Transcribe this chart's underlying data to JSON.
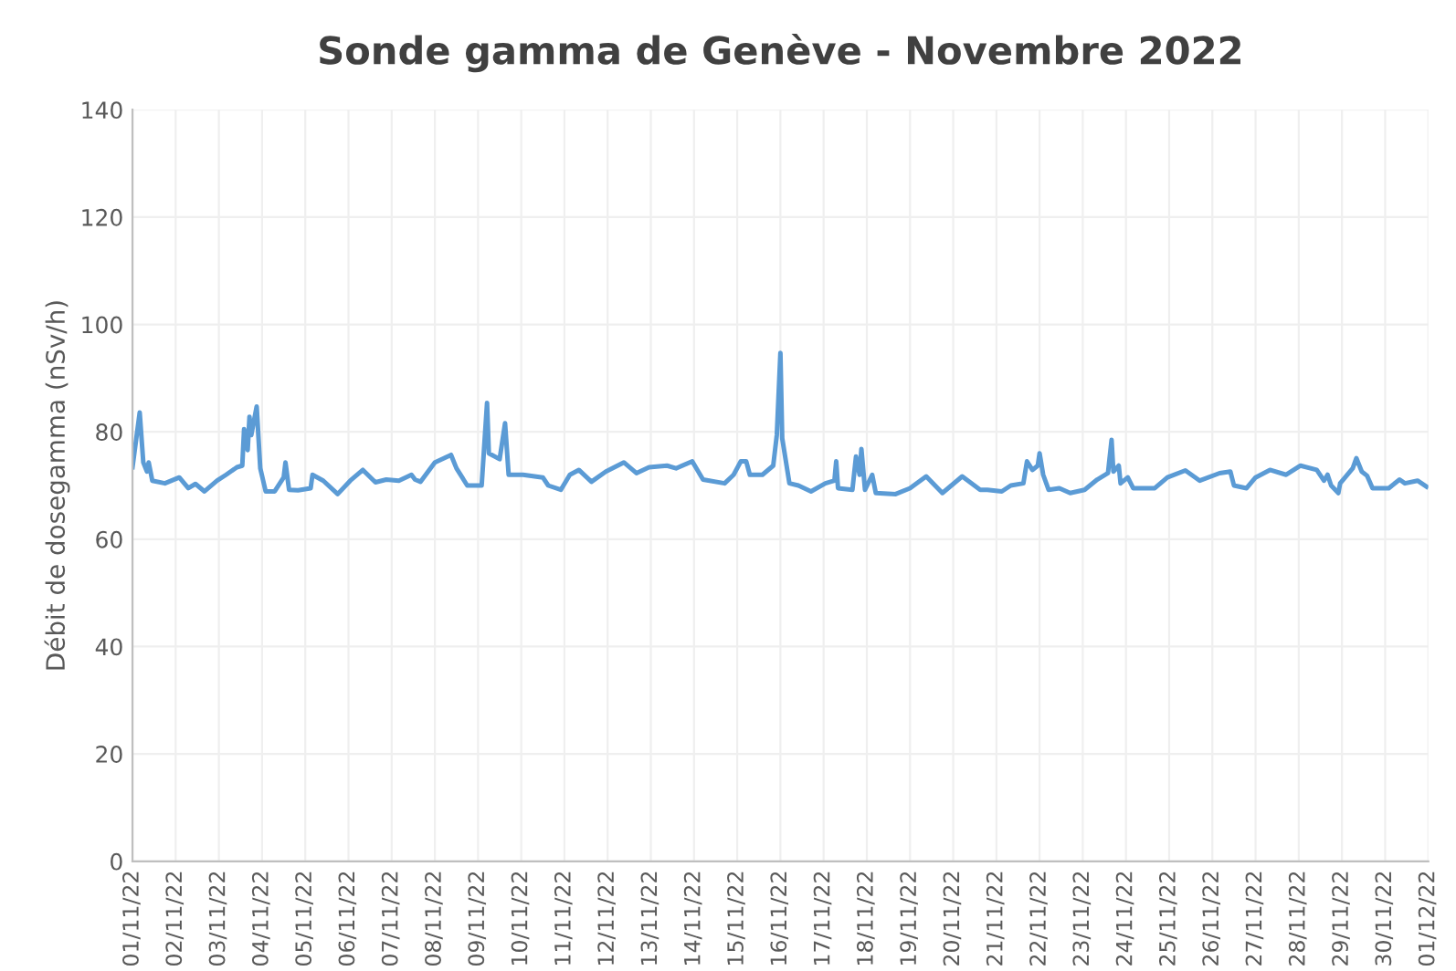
{
  "chart_data": {
    "type": "line",
    "title": "Sonde gamma de Genève - Novembre 2022",
    "ylabel": "Débit de dosegamma (nSv/h)",
    "x": [
      "2022-11-01T00:00",
      "2022-11-01T04:00",
      "2022-11-01T06:00",
      "2022-11-01T08:00",
      "2022-11-01T09:00",
      "2022-11-01T11:00",
      "2022-11-01T18:00",
      "2022-11-02T02:00",
      "2022-11-02T07:00",
      "2022-11-02T11:00",
      "2022-11-02T16:00",
      "2022-11-02T23:00",
      "2022-11-03T04:00",
      "2022-11-03T10:00",
      "2022-11-03T13:00",
      "2022-11-03T14:00",
      "2022-11-03T16:00",
      "2022-11-03T17:00",
      "2022-11-03T18:00",
      "2022-11-03T21:00",
      "2022-11-03T23:00",
      "2022-11-04T02:00",
      "2022-11-04T07:00",
      "2022-11-04T12:00",
      "2022-11-04T13:00",
      "2022-11-04T15:00",
      "2022-11-04T20:00",
      "2022-11-05T03:00",
      "2022-11-05T04:00",
      "2022-11-05T10:00",
      "2022-11-05T18:00",
      "2022-11-06T01:00",
      "2022-11-06T08:00",
      "2022-11-06T15:00",
      "2022-11-06T21:00",
      "2022-11-07T04:00",
      "2022-11-07T11:00",
      "2022-11-07T13:00",
      "2022-11-07T16:00",
      "2022-11-08T00:00",
      "2022-11-08T09:00",
      "2022-11-08T12:00",
      "2022-11-08T18:00",
      "2022-11-09T02:00",
      "2022-11-09T05:00",
      "2022-11-09T06:00",
      "2022-11-09T12:00",
      "2022-11-09T15:00",
      "2022-11-09T17:00",
      "2022-11-10T01:00",
      "2022-11-10T12:00",
      "2022-11-10T15:00",
      "2022-11-10T22:00",
      "2022-11-11T03:00",
      "2022-11-11T08:00",
      "2022-11-11T15:00",
      "2022-11-11T23:00",
      "2022-11-12T09:00",
      "2022-11-12T16:00",
      "2022-11-12T23:00",
      "2022-11-13T09:00",
      "2022-11-13T14:00",
      "2022-11-13T23:00",
      "2022-11-14T05:00",
      "2022-11-14T17:00",
      "2022-11-14T22:00",
      "2022-11-15T02:00",
      "2022-11-15T05:00",
      "2022-11-15T07:00",
      "2022-11-15T14:00",
      "2022-11-15T20:00",
      "2022-11-15T22:00",
      "2022-11-16T00:00",
      "2022-11-16T01:00",
      "2022-11-16T05:00",
      "2022-11-16T10:00",
      "2022-11-16T17:00",
      "2022-11-17T01:00",
      "2022-11-17T06:00",
      "2022-11-17T07:00",
      "2022-11-17T08:00",
      "2022-11-17T16:00",
      "2022-11-17T18:00",
      "2022-11-17T20:00",
      "2022-11-17T21:00",
      "2022-11-17T23:00",
      "2022-11-18T03:00",
      "2022-11-18T05:00",
      "2022-11-18T16:00",
      "2022-11-19T00:00",
      "2022-11-19T09:00",
      "2022-11-19T18:00",
      "2022-11-20T05:00",
      "2022-11-20T15:00",
      "2022-11-20T19:00",
      "2022-11-21T03:00",
      "2022-11-21T08:00",
      "2022-11-21T15:00",
      "2022-11-21T17:00",
      "2022-11-21T20:00",
      "2022-11-21T23:00",
      "2022-11-22T00:00",
      "2022-11-22T02:00",
      "2022-11-22T05:00",
      "2022-11-22T11:00",
      "2022-11-22T17:00",
      "2022-11-23T01:00",
      "2022-11-23T08:00",
      "2022-11-23T14:00",
      "2022-11-23T16:00",
      "2022-11-23T17:00",
      "2022-11-23T20:00",
      "2022-11-23T21:00",
      "2022-11-24T01:00",
      "2022-11-24T04:00",
      "2022-11-24T16:00",
      "2022-11-24T23:00",
      "2022-11-25T09:00",
      "2022-11-25T17:00",
      "2022-11-26T04:00",
      "2022-11-26T10:00",
      "2022-11-26T12:00",
      "2022-11-26T19:00",
      "2022-11-27T00:00",
      "2022-11-27T08:00",
      "2022-11-27T17:00",
      "2022-11-28T01:00",
      "2022-11-28T10:00",
      "2022-11-28T14:00",
      "2022-11-28T16:00",
      "2022-11-28T18:00",
      "2022-11-28T22:00",
      "2022-11-28T23:00",
      "2022-11-29T06:00",
      "2022-11-29T08:00",
      "2022-11-29T11:00",
      "2022-11-29T14:00",
      "2022-11-29T17:00",
      "2022-11-30T02:00",
      "2022-11-30T08:00",
      "2022-11-30T11:00",
      "2022-11-30T18:00",
      "2022-11-30T23:00"
    ],
    "series": [
      {
        "color": "#5b9bd5",
        "values": [
          73.4,
          83.6,
          74.3,
          72.6,
          74.3,
          70.9,
          70.4,
          71.5,
          69.5,
          70.3,
          68.9,
          70.9,
          72.0,
          73.4,
          73.7,
          80.5,
          76.6,
          82.8,
          79.4,
          84.7,
          73.2,
          68.9,
          68.9,
          71.5,
          74.3,
          69.2,
          69.1,
          69.5,
          72.0,
          70.9,
          68.4,
          70.9,
          72.9,
          70.6,
          71.1,
          70.9,
          72.0,
          71.1,
          70.7,
          74.3,
          75.7,
          73.2,
          70.0,
          70.0,
          85.4,
          76.0,
          74.9,
          81.6,
          72.0,
          72.0,
          71.5,
          70.0,
          69.2,
          72.0,
          72.9,
          70.7,
          72.6,
          74.3,
          72.3,
          73.4,
          73.7,
          73.2,
          74.5,
          71.1,
          70.4,
          72.0,
          74.5,
          74.5,
          72.0,
          72.0,
          73.7,
          79.4,
          94.7,
          78.8,
          70.4,
          70.0,
          68.9,
          70.4,
          70.9,
          74.5,
          69.5,
          69.2,
          75.4,
          72.0,
          76.8,
          69.2,
          72.0,
          68.6,
          68.4,
          69.5,
          71.7,
          68.6,
          71.7,
          69.2,
          69.2,
          68.9,
          70.0,
          70.4,
          74.5,
          72.9,
          73.7,
          76.0,
          72.0,
          69.2,
          69.5,
          68.6,
          69.2,
          71.1,
          72.3,
          78.5,
          72.6,
          73.7,
          70.4,
          71.5,
          69.5,
          69.5,
          71.5,
          72.8,
          70.9,
          72.3,
          72.6,
          70.0,
          69.5,
          71.5,
          72.9,
          72.0,
          73.7,
          72.9,
          70.9,
          72.0,
          70.0,
          68.6,
          70.4,
          73.2,
          75.1,
          72.6,
          71.8,
          69.5,
          69.5,
          71.1,
          70.4,
          70.9,
          69.8
        ]
      }
    ],
    "xlim": [
      "2022-11-01",
      "2022-12-01"
    ],
    "xticks": [
      {
        "value": "2022-11-01",
        "label": "01/11/22"
      },
      {
        "value": "2022-11-02",
        "label": "02/11/22"
      },
      {
        "value": "2022-11-03",
        "label": "03/11/22"
      },
      {
        "value": "2022-11-04",
        "label": "04/11/22"
      },
      {
        "value": "2022-11-05",
        "label": "05/11/22"
      },
      {
        "value": "2022-11-06",
        "label": "06/11/22"
      },
      {
        "value": "2022-11-07",
        "label": "07/11/22"
      },
      {
        "value": "2022-11-08",
        "label": "08/11/22"
      },
      {
        "value": "2022-11-09",
        "label": "09/11/22"
      },
      {
        "value": "2022-11-10",
        "label": "10/11/22"
      },
      {
        "value": "2022-11-11",
        "label": "11/11/22"
      },
      {
        "value": "2022-11-12",
        "label": "12/11/22"
      },
      {
        "value": "2022-11-13",
        "label": "13/11/22"
      },
      {
        "value": "2022-11-14",
        "label": "14/11/22"
      },
      {
        "value": "2022-11-15",
        "label": "15/11/22"
      },
      {
        "value": "2022-11-16",
        "label": "16/11/22"
      },
      {
        "value": "2022-11-17",
        "label": "17/11/22"
      },
      {
        "value": "2022-11-18",
        "label": "18/11/22"
      },
      {
        "value": "2022-11-19",
        "label": "19/11/22"
      },
      {
        "value": "2022-11-20",
        "label": "20/11/22"
      },
      {
        "value": "2022-11-21",
        "label": "21/11/22"
      },
      {
        "value": "2022-11-22",
        "label": "22/11/22"
      },
      {
        "value": "2022-11-23",
        "label": "23/11/22"
      },
      {
        "value": "2022-11-24",
        "label": "24/11/22"
      },
      {
        "value": "2022-11-25",
        "label": "25/11/22"
      },
      {
        "value": "2022-11-26",
        "label": "26/11/22"
      },
      {
        "value": "2022-11-27",
        "label": "27/11/22"
      },
      {
        "value": "2022-11-28",
        "label": "28/11/22"
      },
      {
        "value": "2022-11-29",
        "label": "29/11/22"
      },
      {
        "value": "2022-11-30",
        "label": "30/11/22"
      },
      {
        "value": "2022-12-01",
        "label": "01/12/22"
      }
    ],
    "ylim": [
      0,
      140
    ],
    "yticks": [
      0,
      20,
      40,
      60,
      80,
      100,
      120,
      140
    ],
    "grid": true,
    "marker": "none",
    "line_style": "solid"
  }
}
